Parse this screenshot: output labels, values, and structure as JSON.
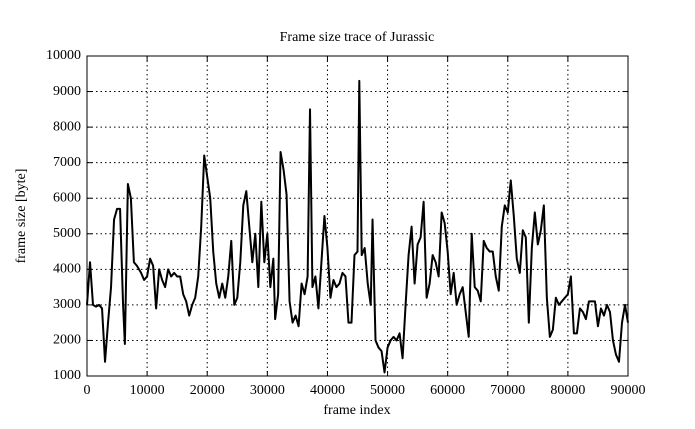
{
  "chart_data": {
    "type": "line",
    "title": "Frame size trace of Jurassic",
    "xlabel": "frame index",
    "ylabel": "frame size [byte]",
    "grid": true,
    "xlim": [
      0,
      90000
    ],
    "xticks": [
      0,
      10000,
      20000,
      30000,
      40000,
      50000,
      60000,
      70000,
      80000,
      90000
    ],
    "ylim": [
      1000,
      10000
    ],
    "yticks": [
      1000,
      2000,
      3000,
      4000,
      5000,
      6000,
      7000,
      8000,
      9000,
      10000
    ],
    "series": [
      {
        "color": "#000000",
        "x": [
          0,
          500,
          1000,
          1500,
          2000,
          2500,
          3000,
          3500,
          4000,
          4500,
          5000,
          5500,
          6000,
          6300,
          6800,
          7300,
          7800,
          8300,
          9000,
          9500,
          10000,
          10500,
          11000,
          11500,
          12000,
          12500,
          13000,
          13500,
          14000,
          14500,
          15000,
          15500,
          16000,
          16500,
          17000,
          17500,
          18000,
          18500,
          19000,
          19500,
          20000,
          20500,
          21000,
          21500,
          22000,
          22500,
          23000,
          23500,
          24000,
          24500,
          25000,
          25500,
          26000,
          26500,
          27000,
          27500,
          28000,
          28500,
          29000,
          29500,
          30000,
          30500,
          31000,
          31300,
          31800,
          32200,
          32700,
          33200,
          33700,
          34200,
          34700,
          35200,
          35700,
          36200,
          36700,
          37100,
          37500,
          38000,
          38500,
          39000,
          39500,
          40000,
          40500,
          41000,
          41500,
          42000,
          42500,
          43000,
          43500,
          44000,
          44500,
          45000,
          45300,
          45700,
          46200,
          46700,
          47200,
          47500,
          48000,
          48500,
          49000,
          49500,
          50000,
          50500,
          51000,
          51500,
          52000,
          52500,
          53000,
          53500,
          54000,
          54500,
          55000,
          55500,
          56000,
          56500,
          57000,
          57500,
          58000,
          58500,
          59000,
          59500,
          60000,
          60500,
          61000,
          61500,
          62000,
          62500,
          63000,
          63500,
          64000,
          64500,
          65000,
          65500,
          66000,
          66500,
          67000,
          67500,
          68000,
          68500,
          69000,
          69500,
          70000,
          70500,
          71000,
          71500,
          72000,
          72500,
          73000,
          73500,
          74000,
          74500,
          75000,
          75500,
          76000,
          76500,
          77000,
          77500,
          78000,
          78500,
          79000,
          79500,
          80000,
          80500,
          81000,
          81500,
          82000,
          82500,
          83000,
          83500,
          84000,
          84500,
          85000,
          85500,
          86000,
          86500,
          87000,
          87500,
          88000,
          88500,
          89000,
          89500,
          90000
        ],
        "values": [
          3000,
          4200,
          3000,
          2950,
          3000,
          2900,
          1400,
          2500,
          3500,
          5400,
          5700,
          5700,
          3000,
          1900,
          6400,
          6000,
          4200,
          4100,
          3900,
          3700,
          3800,
          4300,
          4100,
          2900,
          4000,
          3700,
          3500,
          4000,
          3800,
          3900,
          3800,
          3800,
          3300,
          3100,
          2700,
          3000,
          3200,
          3800,
          5200,
          7200,
          6600,
          6000,
          4500,
          3600,
          3200,
          3600,
          3200,
          3800,
          4800,
          3000,
          3200,
          4200,
          5800,
          6200,
          5200,
          4200,
          5000,
          3500,
          5900,
          4200,
          5000,
          3500,
          4300,
          2600,
          3300,
          7300,
          6800,
          6100,
          3100,
          2500,
          2700,
          2400,
          3600,
          3300,
          3800,
          8500,
          3500,
          3800,
          2900,
          4200,
          5500,
          4600,
          3200,
          3700,
          3500,
          3600,
          3900,
          3800,
          2500,
          2500,
          4400,
          4500,
          9300,
          4400,
          4600,
          3600,
          3000,
          5400,
          2000,
          1800,
          1700,
          1100,
          1800,
          2000,
          2100,
          2000,
          2200,
          1500,
          3000,
          4400,
          5200,
          3600,
          4700,
          4900,
          5900,
          3200,
          3600,
          4400,
          4200,
          3800,
          5600,
          5300,
          4500,
          3300,
          3900,
          3000,
          3300,
          3500,
          2800,
          2100,
          5000,
          3500,
          3400,
          3100,
          4800,
          4600,
          4500,
          4500,
          3800,
          3400,
          5200,
          5800,
          5600,
          6500,
          5500,
          4300,
          3900,
          5100,
          4900,
          2500,
          4600,
          5600,
          4700,
          5100,
          5800,
          3200,
          2100,
          2300,
          3200,
          3000,
          3100,
          3200,
          3300,
          3800,
          2200,
          2200,
          2900,
          2800,
          2600,
          3100,
          3100,
          3100,
          2400,
          2900,
          2700,
          3000,
          2800,
          2000,
          1600,
          1400,
          2500,
          3000,
          2500
        ]
      }
    ]
  }
}
